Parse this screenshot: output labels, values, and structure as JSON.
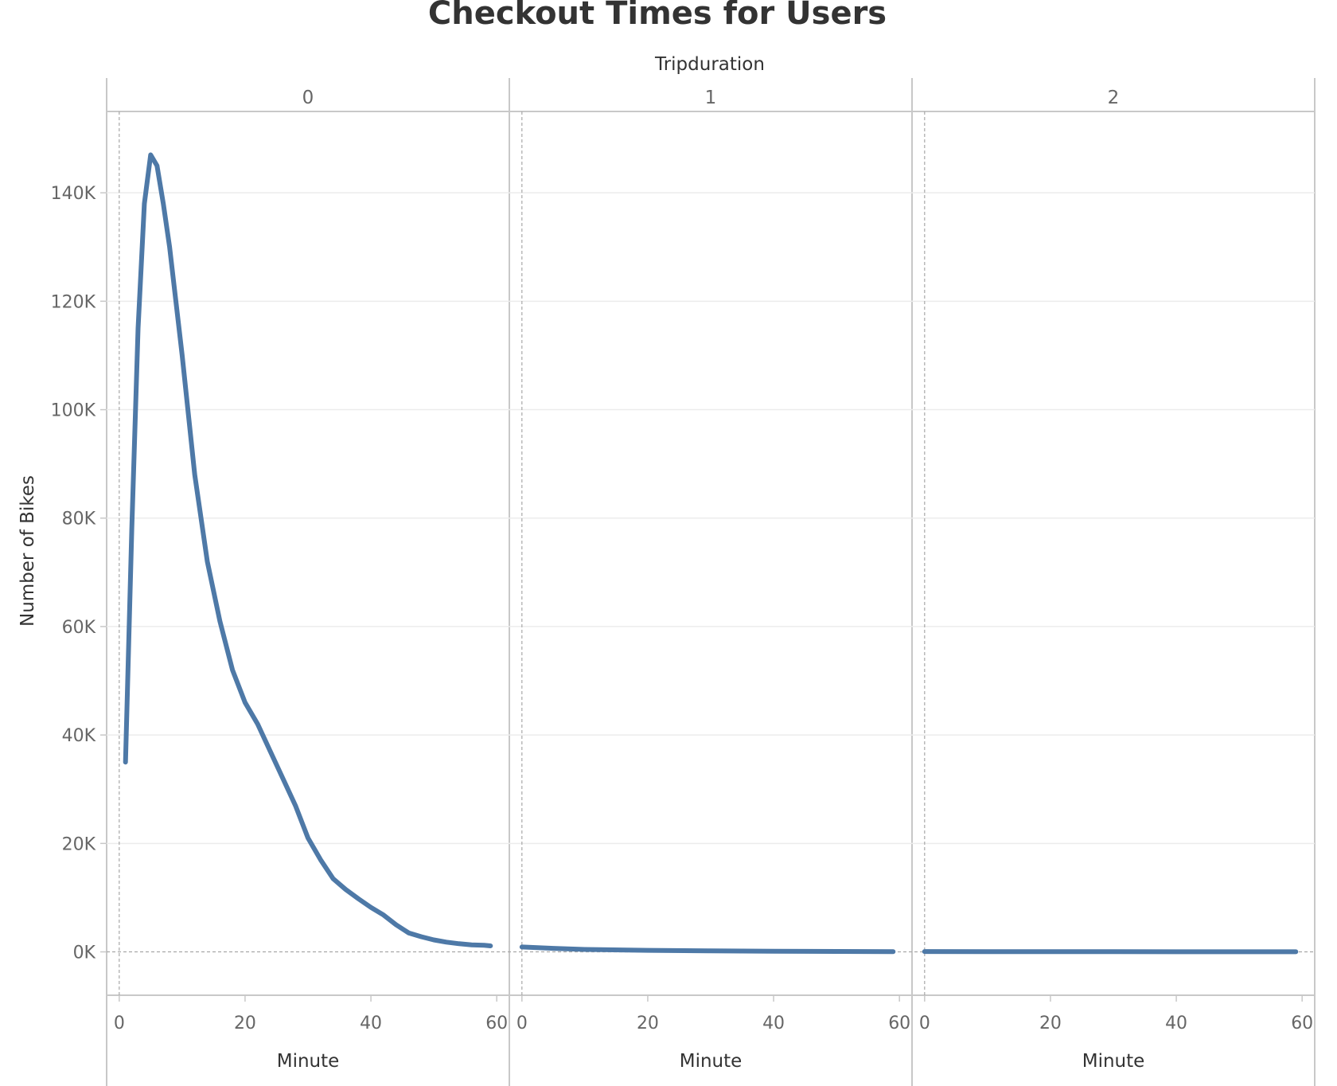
{
  "chart_data": {
    "type": "line",
    "title": "Checkout Times for Users",
    "column_header": "Tripduration",
    "xlabel": "Minute",
    "ylabel": "Number of Bikes",
    "xlim": [
      -2,
      62
    ],
    "ylim": [
      -8000,
      155000
    ],
    "x_ticks": [
      "0",
      "20",
      "40",
      "60"
    ],
    "y_ticks": [
      "0K",
      "20K",
      "40K",
      "60K",
      "80K",
      "100K",
      "120K",
      "140K"
    ],
    "line_color": "#4e79a7",
    "grid": true,
    "panels": [
      {
        "label": "0",
        "x": [
          1,
          2,
          3,
          4,
          5,
          6,
          7,
          8,
          9,
          10,
          12,
          14,
          16,
          18,
          20,
          22,
          24,
          26,
          28,
          30,
          32,
          34,
          36,
          38,
          40,
          42,
          44,
          46,
          48,
          50,
          52,
          54,
          56,
          58,
          59
        ],
        "y": [
          35000,
          78000,
          115000,
          138000,
          147000,
          145000,
          138000,
          130000,
          120000,
          110000,
          88000,
          72000,
          61000,
          52000,
          46000,
          42000,
          37000,
          32000,
          27000,
          21000,
          17000,
          13500,
          11500,
          9800,
          8200,
          6800,
          5000,
          3500,
          2800,
          2200,
          1800,
          1500,
          1300,
          1200,
          1100
        ]
      },
      {
        "label": "1",
        "x": [
          0,
          5,
          10,
          20,
          30,
          40,
          50,
          59
        ],
        "y": [
          900,
          650,
          450,
          280,
          180,
          120,
          80,
          50
        ]
      },
      {
        "label": "2",
        "x": [
          0,
          10,
          20,
          30,
          40,
          50,
          59
        ],
        "y": [
          60,
          50,
          40,
          30,
          25,
          20,
          15
        ]
      }
    ]
  }
}
